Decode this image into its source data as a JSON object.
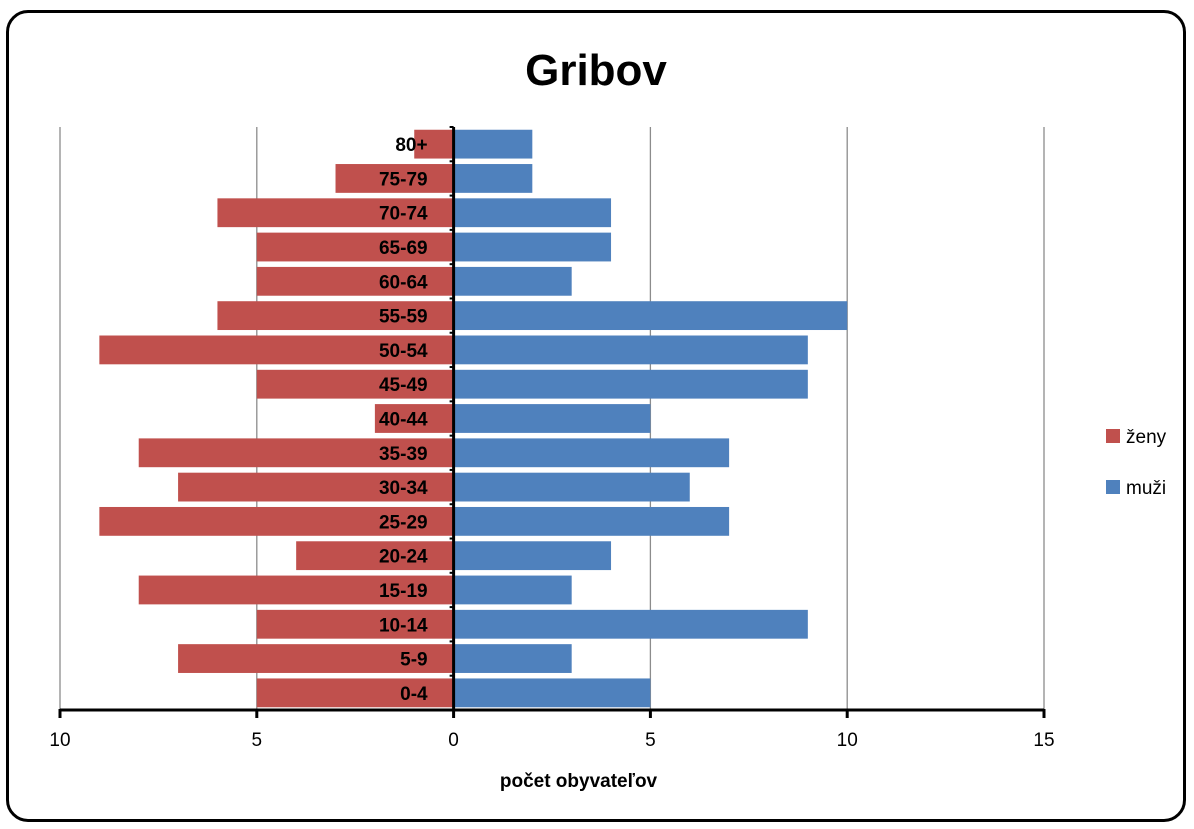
{
  "chart_data": {
    "type": "bar",
    "title": "Gribov",
    "xlabel": "počet obyvateľov",
    "ylabel": "",
    "categories": [
      "0-4",
      "5-9",
      "10-14",
      "15-19",
      "20-24",
      "25-29",
      "30-34",
      "35-39",
      "40-44",
      "45-49",
      "50-54",
      "55-59",
      "60-64",
      "65-69",
      "70-74",
      "75-79",
      "80+"
    ],
    "series": [
      {
        "name": "ženy",
        "color": "#c0504d",
        "values": [
          5,
          7,
          5,
          8,
          4,
          9,
          7,
          8,
          2,
          5,
          9,
          6,
          5,
          5,
          6,
          3,
          1
        ]
      },
      {
        "name": "muži",
        "color": "#4f81bd",
        "values": [
          5,
          3,
          9,
          3,
          4,
          7,
          6,
          7,
          5,
          9,
          9,
          10,
          3,
          4,
          4,
          2,
          2
        ]
      }
    ],
    "xlim": [
      -10,
      15
    ],
    "xticks": [
      -10,
      -5,
      0,
      5,
      10,
      15
    ],
    "xtick_labels": [
      "10",
      "5",
      "0",
      "5",
      "10",
      "15"
    ],
    "grid": true,
    "legend": "right"
  }
}
